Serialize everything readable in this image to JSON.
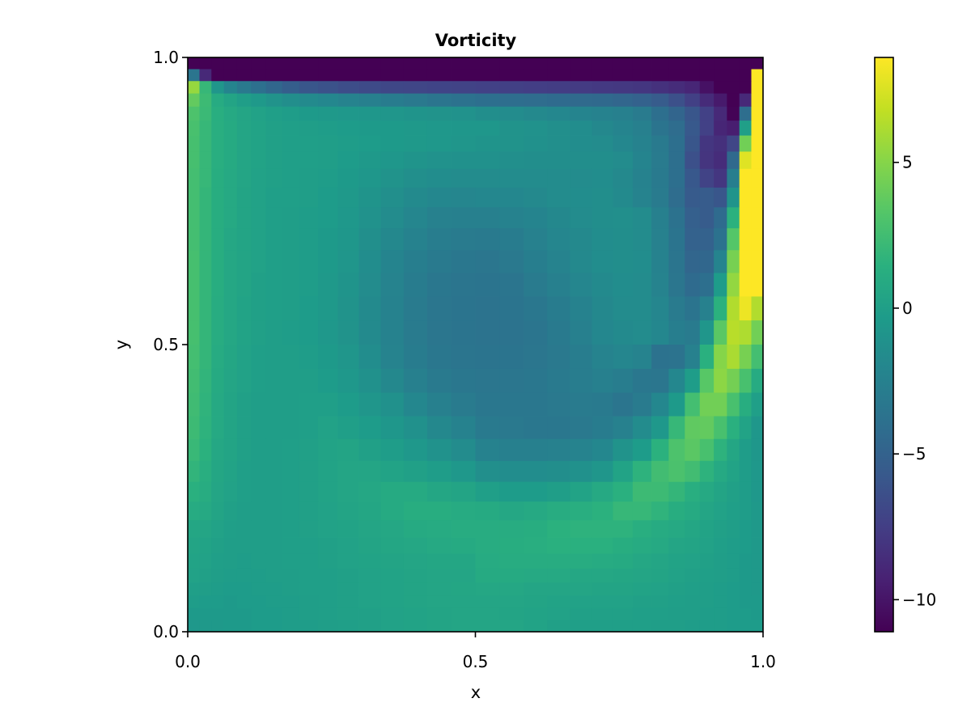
{
  "chart_data": {
    "type": "heatmap",
    "title": "Vorticity",
    "xlabel": "x",
    "ylabel": "y",
    "xlim": [
      0,
      1
    ],
    "ylim": [
      0,
      1
    ],
    "xticks": [
      0,
      0.5,
      1
    ],
    "xtick_labels": [
      "0.0",
      "0.5",
      "1.0"
    ],
    "yticks": [
      0,
      0.5,
      1
    ],
    "ytick_labels": [
      "0.0",
      "0.5",
      "1.0"
    ],
    "grid": false,
    "colormap": "viridis",
    "colorrange": [
      -11.1,
      8.6
    ],
    "colorbar": {
      "placement": "right",
      "ticks": [
        5,
        0,
        -5,
        -10
      ],
      "tick_labels": [
        "5",
        "0",
        "−5",
        "−10"
      ]
    },
    "x_edges": [
      0,
      0.0204,
      0.0412,
      0.0628,
      0.0856,
      0.11,
      0.136,
      0.164,
      0.194,
      0.2266,
      0.261,
      0.2975,
      0.3356,
      0.3753,
      0.4162,
      0.4579,
      0.5,
      0.5421,
      0.5838,
      0.6247,
      0.6644,
      0.7025,
      0.739,
      0.7734,
      0.806,
      0.836,
      0.864,
      0.89,
      0.9144,
      0.9372,
      0.9588,
      0.9796,
      1
    ],
    "y_edges": [
      1,
      0.9796,
      0.9588,
      0.9372,
      0.9144,
      0.89,
      0.864,
      0.836,
      0.806,
      0.7734,
      0.739,
      0.7025,
      0.6644,
      0.6247,
      0.5838,
      0.5421,
      0.5,
      0.4579,
      0.4162,
      0.3753,
      0.3356,
      0.2975,
      0.261,
      0.2266,
      0.194,
      0.164,
      0.136,
      0.11,
      0.0856,
      0.0628,
      0.0412,
      0.0204,
      0
    ],
    "z": [
      [
        -11.1,
        -11.1,
        -11.1,
        -11.1,
        -11.1,
        -11.1,
        -11.1,
        -11.1,
        -11.1,
        -11.1,
        -11.1,
        -11.1,
        -11.1,
        -11.1,
        -11.1,
        -11.1,
        -11.1,
        -11.1,
        -11.1,
        -11.1,
        -11.1,
        -11.1,
        -11.1,
        -11.1,
        -11.1,
        -11.1,
        -11.1,
        -11.1,
        -11.1,
        -11.1,
        -11.1,
        -11.1
      ],
      [
        -3.5,
        -8.8,
        -11.1,
        -11.1,
        -11.1,
        -11.1,
        -11.1,
        -11.1,
        -11.1,
        -11.1,
        -11.1,
        -11.1,
        -11.1,
        -11.1,
        -11.1,
        -11.1,
        -11.1,
        -11.1,
        -11.1,
        -11.1,
        -11.1,
        -11.1,
        -11.1,
        -11.1,
        -11.1,
        -11.1,
        -11.1,
        -11.1,
        -11.1,
        -11.1,
        -11.1,
        8.6
      ],
      [
        5.5,
        2.0,
        -0.8,
        -2.2,
        -3.2,
        -3.9,
        -4.6,
        -5.3,
        -5.9,
        -6.2,
        -6.5,
        -6.7,
        -6.9,
        -7.0,
        -7.1,
        -7.2,
        -7.3,
        -7.4,
        -7.5,
        -7.6,
        -7.7,
        -7.8,
        -7.9,
        -8.0,
        -8.3,
        -8.6,
        -9.0,
        -10.2,
        -11.1,
        -11.1,
        -11.1,
        8.6
      ],
      [
        3.8,
        2.3,
        1.0,
        0.4,
        -0.1,
        -0.5,
        -1.0,
        -1.4,
        -1.7,
        -2.0,
        -2.3,
        -2.6,
        -2.9,
        -3.2,
        -3.5,
        -3.8,
        -4.0,
        -4.1,
        -4.2,
        -4.3,
        -4.4,
        -4.5,
        -4.7,
        -5.0,
        -5.5,
        -6.3,
        -7.4,
        -8.7,
        -9.7,
        -11.1,
        -8.8,
        8.6
      ],
      [
        3.0,
        2.2,
        1.3,
        0.8,
        0.5,
        0.2,
        0.0,
        -0.2,
        -0.4,
        -0.5,
        -0.6,
        -0.7,
        -0.8,
        -0.9,
        -1.0,
        -1.1,
        -1.4,
        -1.6,
        -1.8,
        -2.0,
        -2.2,
        -2.4,
        -2.6,
        -3.0,
        -4.0,
        -4.8,
        -5.9,
        -7.3,
        -8.8,
        -11.0,
        -4.1,
        8.6
      ],
      [
        2.8,
        2.0,
        1.3,
        0.9,
        0.5,
        0.3,
        0.1,
        0.0,
        -0.1,
        -0.2,
        -0.3,
        -0.4,
        -0.4,
        -0.5,
        -0.6,
        -0.7,
        -0.7,
        -1.0,
        -1.1,
        -1.3,
        -1.5,
        -1.9,
        -2.2,
        -2.6,
        -3.6,
        -4.2,
        -5.7,
        -7.3,
        -9.0,
        -9.5,
        0.0,
        8.6
      ],
      [
        2.7,
        2.0,
        1.3,
        0.9,
        0.5,
        0.3,
        0.1,
        0.0,
        0.0,
        -0.1,
        -0.2,
        -0.3,
        -0.4,
        -0.5,
        -0.6,
        -0.8,
        -0.9,
        -1.0,
        -1.2,
        -1.3,
        -1.5,
        -1.6,
        -2.0,
        -2.4,
        -3.1,
        -4.0,
        -5.9,
        -8.0,
        -8.4,
        -7.0,
        4.3,
        8.6
      ],
      [
        2.7,
        2.0,
        1.3,
        0.9,
        0.5,
        0.3,
        0.1,
        0.0,
        0.0,
        -0.1,
        -0.3,
        -0.5,
        -0.7,
        -0.9,
        -1.1,
        -1.2,
        -1.2,
        -1.3,
        -1.4,
        -1.4,
        -1.4,
        -1.4,
        -1.6,
        -2.2,
        -3.0,
        -4.0,
        -6.3,
        -8.1,
        -8.6,
        -4.5,
        7.7,
        8.6
      ],
      [
        2.6,
        2.0,
        1.2,
        0.8,
        0.5,
        0.2,
        0.1,
        0.0,
        -0.1,
        -0.2,
        -0.4,
        -0.7,
        -1.0,
        -1.3,
        -1.5,
        -1.6,
        -1.6,
        -1.6,
        -1.6,
        -1.6,
        -1.6,
        -1.5,
        -1.8,
        -2.4,
        -3.1,
        -4.0,
        -5.8,
        -7.2,
        -8.0,
        -2.7,
        8.6,
        8.6
      ],
      [
        2.6,
        1.9,
        1.2,
        0.8,
        0.4,
        0.2,
        0.0,
        0.0,
        -0.1,
        -0.3,
        -0.5,
        -0.9,
        -1.3,
        -1.7,
        -2.0,
        -2.1,
        -2.0,
        -2.0,
        -1.8,
        -1.6,
        -1.5,
        -1.4,
        -1.7,
        -2.3,
        -3.0,
        -4.2,
        -5.6,
        -5.5,
        -5.9,
        -0.9,
        8.6,
        8.6
      ],
      [
        2.6,
        1.9,
        1.2,
        0.8,
        0.4,
        0.2,
        0.0,
        -0.1,
        -0.2,
        -0.3,
        -0.6,
        -1.1,
        -1.6,
        -2.1,
        -2.5,
        -2.6,
        -2.6,
        -2.4,
        -2.2,
        -1.9,
        -1.6,
        -1.4,
        -1.3,
        -1.6,
        -2.6,
        -3.8,
        -5.2,
        -5.5,
        -4.3,
        1.5,
        8.6,
        8.6
      ],
      [
        2.6,
        1.9,
        1.2,
        0.7,
        0.4,
        0.2,
        0.0,
        -0.1,
        -0.2,
        -0.4,
        -0.7,
        -1.3,
        -1.9,
        -2.4,
        -2.8,
        -3.0,
        -3.1,
        -2.9,
        -2.5,
        -2.1,
        -1.8,
        -1.5,
        -1.4,
        -1.6,
        -2.5,
        -3.6,
        -5.0,
        -5.0,
        -3.8,
        3.3,
        8.6,
        8.6
      ],
      [
        2.7,
        1.9,
        1.2,
        0.7,
        0.4,
        0.2,
        0.0,
        -0.1,
        -0.2,
        -0.4,
        -0.8,
        -1.5,
        -2.2,
        -2.7,
        -3.1,
        -3.3,
        -3.4,
        -3.2,
        -2.7,
        -2.3,
        -1.8,
        -1.5,
        -1.4,
        -1.5,
        -2.4,
        -3.5,
        -4.7,
        -4.6,
        -2.2,
        4.5,
        8.6,
        8.6
      ],
      [
        2.7,
        1.9,
        1.2,
        0.7,
        0.4,
        0.1,
        0.0,
        -0.1,
        -0.2,
        -0.5,
        -0.9,
        -1.6,
        -2.3,
        -2.9,
        -3.3,
        -3.5,
        -3.6,
        -3.5,
        -3.0,
        -2.6,
        -2.1,
        -1.7,
        -1.5,
        -1.6,
        -2.3,
        -3.4,
        -4.3,
        -4.0,
        -0.3,
        5.4,
        8.6,
        8.6
      ],
      [
        2.7,
        1.9,
        1.1,
        0.7,
        0.3,
        0.1,
        0.0,
        -0.1,
        -0.3,
        -0.5,
        -1.0,
        -1.7,
        -2.4,
        -3.0,
        -3.4,
        -3.6,
        -3.7,
        -3.6,
        -3.3,
        -2.9,
        -2.4,
        -1.9,
        -1.6,
        -1.6,
        -2.1,
        -3.0,
        -3.6,
        -2.5,
        1.5,
        6.3,
        8.1,
        6.3
      ],
      [
        2.7,
        1.9,
        1.1,
        0.7,
        0.3,
        0.1,
        -0.1,
        -0.2,
        -0.3,
        -0.6,
        -1.0,
        -1.7,
        -2.4,
        -3.0,
        -3.4,
        -3.6,
        -3.7,
        -3.7,
        -3.5,
        -3.1,
        -2.6,
        -2.0,
        -1.7,
        -1.6,
        -2.0,
        -2.7,
        -3.0,
        -0.8,
        3.5,
        6.5,
        6.2,
        4.3
      ],
      [
        2.6,
        1.9,
        1.0,
        0.6,
        0.2,
        0.0,
        -0.1,
        -0.1,
        -0.2,
        -0.4,
        -0.8,
        -1.5,
        -2.3,
        -2.9,
        -3.3,
        -3.5,
        -3.6,
        -3.6,
        -3.4,
        -3.2,
        -2.8,
        -2.3,
        -2.1,
        -2.3,
        -3.8,
        -3.7,
        -2.5,
        1.4,
        5.0,
        6.1,
        4.5,
        2.6
      ],
      [
        2.5,
        1.8,
        0.9,
        0.5,
        0.2,
        0.0,
        -0.1,
        -0.1,
        -0.1,
        -0.3,
        -0.6,
        -1.2,
        -1.9,
        -2.6,
        -3.1,
        -3.3,
        -3.4,
        -3.4,
        -3.3,
        -3.1,
        -2.8,
        -2.6,
        -2.8,
        -3.3,
        -3.4,
        -2.0,
        -0.2,
        3.4,
        5.2,
        4.4,
        2.8,
        1.0
      ],
      [
        2.4,
        1.7,
        0.8,
        0.4,
        0.1,
        -0.1,
        -0.1,
        -0.1,
        0.0,
        0.0,
        -0.3,
        -0.8,
        -1.2,
        -2.0,
        -2.6,
        -3.0,
        -3.3,
        -3.3,
        -3.3,
        -3.2,
        -3.0,
        -3.1,
        -3.5,
        -3.0,
        -2.0,
        -0.4,
        2.6,
        4.3,
        4.3,
        2.8,
        1.2,
        0.0
      ],
      [
        2.3,
        1.6,
        0.8,
        0.4,
        0.1,
        -0.1,
        -0.1,
        -0.1,
        0.0,
        0.2,
        0.0,
        -0.3,
        -0.7,
        -1.2,
        -1.9,
        -2.4,
        -3.1,
        -3.2,
        -3.3,
        -3.3,
        -3.2,
        -2.9,
        -2.5,
        -1.6,
        -0.6,
        2.0,
        3.7,
        3.8,
        2.8,
        1.4,
        0.3,
        -0.7
      ],
      [
        2.1,
        1.5,
        0.7,
        0.4,
        0.1,
        -0.1,
        -0.1,
        0.0,
        0.1,
        0.3,
        0.4,
        0.1,
        -0.2,
        -0.6,
        -1.1,
        -1.6,
        -2.4,
        -2.6,
        -2.6,
        -2.5,
        -2.3,
        -2.0,
        -1.0,
        -0.3,
        1.5,
        3.0,
        3.5,
        2.8,
        1.6,
        0.6,
        -0.2,
        -0.7
      ],
      [
        1.8,
        1.3,
        0.6,
        0.3,
        0.0,
        -0.1,
        -0.1,
        0.0,
        0.1,
        0.3,
        0.5,
        0.5,
        0.3,
        0.1,
        -0.2,
        -0.6,
        -1.3,
        -1.5,
        -1.5,
        -1.4,
        -1.2,
        -0.8,
        0.3,
        1.6,
        2.5,
        2.9,
        2.5,
        1.6,
        0.8,
        0.3,
        -0.2,
        -0.6
      ],
      [
        1.4,
        1.1,
        0.5,
        0.2,
        0.0,
        -0.1,
        -0.1,
        0.0,
        0.1,
        0.3,
        0.5,
        0.7,
        0.9,
        0.9,
        0.6,
        0.4,
        0.0,
        -0.3,
        -0.3,
        -0.1,
        0.3,
        0.8,
        1.4,
        2.3,
        2.3,
        1.9,
        1.3,
        0.8,
        0.4,
        0.1,
        -0.2,
        -0.6
      ],
      [
        1.0,
        0.8,
        0.4,
        0.1,
        -0.1,
        -0.1,
        -0.1,
        0.0,
        0.1,
        0.2,
        0.4,
        0.6,
        0.9,
        1.2,
        1.2,
        1.0,
        0.9,
        0.7,
        0.8,
        1.1,
        1.3,
        1.5,
        2.0,
        2.0,
        1.7,
        1.2,
        0.9,
        0.5,
        0.2,
        0.0,
        -0.2,
        -0.5
      ],
      [
        0.6,
        0.5,
        0.2,
        0.0,
        -0.1,
        -0.1,
        -0.1,
        0.0,
        0.1,
        0.2,
        0.3,
        0.5,
        0.7,
        0.9,
        1.0,
        1.1,
        1.1,
        1.1,
        1.2,
        1.5,
        1.6,
        1.6,
        1.6,
        1.3,
        1.0,
        0.8,
        0.6,
        0.3,
        0.1,
        -0.1,
        -0.3,
        -0.5
      ],
      [
        0.4,
        0.3,
        0.1,
        -0.1,
        -0.1,
        -0.1,
        -0.1,
        0.0,
        0.0,
        0.1,
        0.2,
        0.4,
        0.6,
        0.7,
        0.8,
        0.9,
        1.1,
        1.2,
        1.3,
        1.4,
        1.4,
        1.4,
        1.2,
        1.0,
        0.8,
        0.5,
        0.4,
        0.2,
        0.0,
        -0.2,
        -0.3,
        -0.5
      ],
      [
        0.3,
        0.2,
        0.0,
        -0.1,
        -0.2,
        -0.1,
        -0.1,
        0.0,
        0.0,
        0.1,
        0.2,
        0.3,
        0.4,
        0.5,
        0.6,
        0.6,
        1.0,
        1.1,
        1.1,
        1.1,
        1.1,
        1.0,
        0.9,
        0.7,
        0.5,
        0.3,
        0.2,
        0.1,
        -0.1,
        -0.2,
        -0.4,
        -0.5
      ],
      [
        0.2,
        0.1,
        -0.1,
        -0.2,
        -0.2,
        -0.2,
        -0.1,
        -0.1,
        0.0,
        0.0,
        0.1,
        0.2,
        0.3,
        0.4,
        0.5,
        0.5,
        0.9,
        0.9,
        0.8,
        0.8,
        0.7,
        0.7,
        0.6,
        0.5,
        0.4,
        0.2,
        0.1,
        0.0,
        -0.1,
        -0.2,
        -0.4,
        -0.5
      ],
      [
        0.0,
        -0.1,
        -0.2,
        -0.3,
        -0.3,
        -0.2,
        -0.2,
        -0.1,
        0.0,
        0.0,
        0.1,
        0.2,
        0.3,
        0.4,
        0.5,
        0.6,
        0.7,
        0.7,
        0.5,
        0.5,
        0.5,
        0.4,
        0.4,
        0.3,
        0.2,
        0.1,
        0.0,
        -0.1,
        -0.2,
        -0.3,
        -0.4,
        -0.5
      ],
      [
        -0.2,
        -0.3,
        -0.3,
        -0.4,
        -0.3,
        -0.3,
        -0.2,
        -0.2,
        -0.1,
        0.0,
        0.1,
        0.2,
        0.3,
        0.4,
        0.5,
        0.5,
        0.5,
        0.5,
        0.4,
        0.3,
        0.2,
        0.2,
        0.2,
        0.1,
        0.1,
        0.0,
        -0.1,
        -0.1,
        -0.2,
        -0.3,
        -0.4,
        -0.4
      ],
      [
        -0.4,
        -0.4,
        -0.4,
        -0.4,
        -0.4,
        -0.3,
        -0.3,
        -0.2,
        -0.1,
        0.0,
        0.1,
        0.1,
        0.2,
        0.3,
        0.4,
        0.5,
        0.5,
        0.4,
        0.3,
        0.2,
        0.1,
        0.1,
        0.1,
        0.0,
        0.0,
        -0.1,
        -0.1,
        -0.2,
        -0.2,
        -0.3,
        -0.3,
        -0.4
      ],
      [
        -0.6,
        -0.5,
        -0.5,
        -0.4,
        -0.4,
        -0.3,
        -0.3,
        -0.2,
        -0.2,
        -0.1,
        0.0,
        0.1,
        0.2,
        0.3,
        0.4,
        0.5,
        0.5,
        0.5,
        0.3,
        0.1,
        0.0,
        0.0,
        0.0,
        0.0,
        -0.1,
        -0.1,
        -0.2,
        -0.2,
        -0.2,
        -0.3,
        -0.3,
        -0.3
      ]
    ]
  }
}
